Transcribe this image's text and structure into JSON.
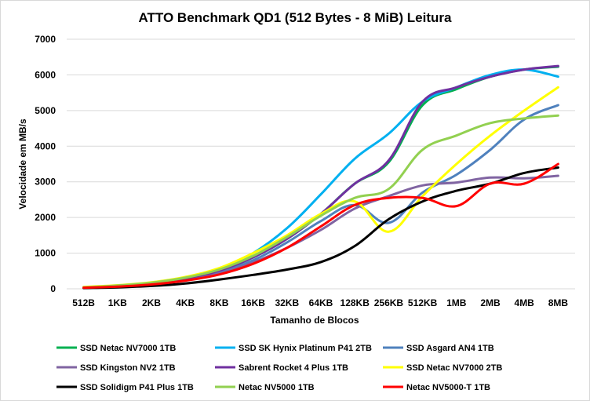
{
  "chart_data": {
    "type": "line",
    "title": "ATTO Benchmark QD1 (512 Bytes - 8 MiB) Leitura",
    "xlabel": "Tamanho de Blocos",
    "ylabel": "Velocidade em MB/s",
    "ylim": [
      0,
      7000
    ],
    "yticks": [
      0,
      1000,
      2000,
      3000,
      4000,
      5000,
      6000,
      7000
    ],
    "grid": "horizontal",
    "legend_position": "bottom",
    "categories": [
      "512B",
      "1KB",
      "2KB",
      "4KB",
      "8KB",
      "16KB",
      "32KB",
      "64KB",
      "128KB",
      "256KB",
      "512KB",
      "1MB",
      "2MB",
      "4MB",
      "8MB"
    ],
    "series": [
      {
        "name": "SSD Netac NV7000 1TB",
        "color": "#00b050",
        "values": [
          40,
          80,
          150,
          290,
          510,
          880,
          1400,
          2100,
          2950,
          3550,
          5150,
          5600,
          5950,
          6150,
          6230
        ]
      },
      {
        "name": "SSD SK Hynix Platinum P41 2TB",
        "color": "#00b0f0",
        "values": [
          40,
          80,
          160,
          310,
          550,
          1000,
          1700,
          2650,
          3650,
          4350,
          5250,
          5650,
          6000,
          6150,
          5950
        ]
      },
      {
        "name": "SSD Asgard AN4 1TB",
        "color": "#4f81bd",
        "values": [
          30,
          70,
          140,
          260,
          460,
          800,
          1300,
          1900,
          2350,
          1850,
          2700,
          3200,
          3900,
          4750,
          5150
        ]
      },
      {
        "name": "SSD Kingston NV2 1TB",
        "color": "#8064a2",
        "values": [
          30,
          70,
          130,
          250,
          430,
          740,
          1150,
          1650,
          2250,
          2600,
          2900,
          2980,
          3120,
          3100,
          3170
        ]
      },
      {
        "name": "Sabrent Rocket 4 Plus 1TB",
        "color": "#7030a0",
        "values": [
          40,
          80,
          150,
          290,
          510,
          880,
          1400,
          2100,
          2950,
          3600,
          5250,
          5650,
          5950,
          6150,
          6250
        ]
      },
      {
        "name": "SSD Netac NV7000 2TB",
        "color": "#ffff00",
        "values": [
          50,
          100,
          180,
          330,
          580,
          1000,
          1500,
          2100,
          2450,
          1600,
          2600,
          3500,
          4300,
          5000,
          5650
        ]
      },
      {
        "name": "SSD Solidigm P41 Plus 1TB",
        "color": "#000000",
        "values": [
          20,
          40,
          80,
          150,
          260,
          390,
          540,
          750,
          1200,
          1950,
          2450,
          2750,
          2950,
          3250,
          3400
        ]
      },
      {
        "name": "Netac NV5000 1TB",
        "color": "#92d050",
        "values": [
          40,
          90,
          170,
          310,
          540,
          920,
          1450,
          2050,
          2550,
          2800,
          3900,
          4300,
          4650,
          4780,
          4860
        ]
      },
      {
        "name": "Netac NV5000-T 1TB",
        "color": "#ff0000",
        "values": [
          30,
          60,
          120,
          230,
          400,
          700,
          1150,
          1750,
          2350,
          2550,
          2550,
          2320,
          2950,
          2950,
          3500
        ]
      }
    ]
  }
}
